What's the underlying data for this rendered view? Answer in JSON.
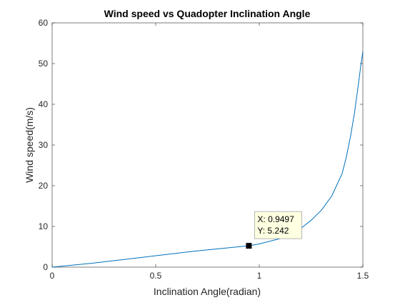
{
  "chart_data": {
    "type": "line",
    "title": "Wind speed vs Quadopter Inclination Angle",
    "xlabel": "Inclination Angle(radian)",
    "ylabel": "Wind speed(m/s)",
    "xlim": [
      0,
      1.5
    ],
    "ylim": [
      0,
      60
    ],
    "x_ticks": [
      "0",
      "0.5",
      "1",
      "1.5"
    ],
    "y_ticks": [
      "0",
      "10",
      "20",
      "30",
      "40",
      "50",
      "60"
    ],
    "grid": false,
    "series": [
      {
        "color": "#0072bd",
        "x": [
          0,
          0.1,
          0.2,
          0.3,
          0.4,
          0.5,
          0.6,
          0.7,
          0.8,
          0.9,
          0.9497,
          1.0,
          1.1,
          1.2,
          1.25,
          1.3,
          1.35,
          1.4,
          1.42,
          1.44,
          1.46,
          1.48,
          1.49,
          1.5
        ],
        "y": [
          0,
          0.5,
          1.0,
          1.6,
          2.2,
          2.8,
          3.4,
          4.0,
          4.5,
          5.0,
          5.242,
          5.7,
          7.0,
          9.5,
          11.5,
          14.0,
          17.5,
          23.0,
          27.0,
          32.0,
          38.0,
          45.5,
          49.5,
          53.0
        ]
      }
    ],
    "datatip": {
      "x": 0.9497,
      "y": 5.242,
      "x_text": "X: 0.9497",
      "y_text": "Y: 5.242"
    }
  }
}
